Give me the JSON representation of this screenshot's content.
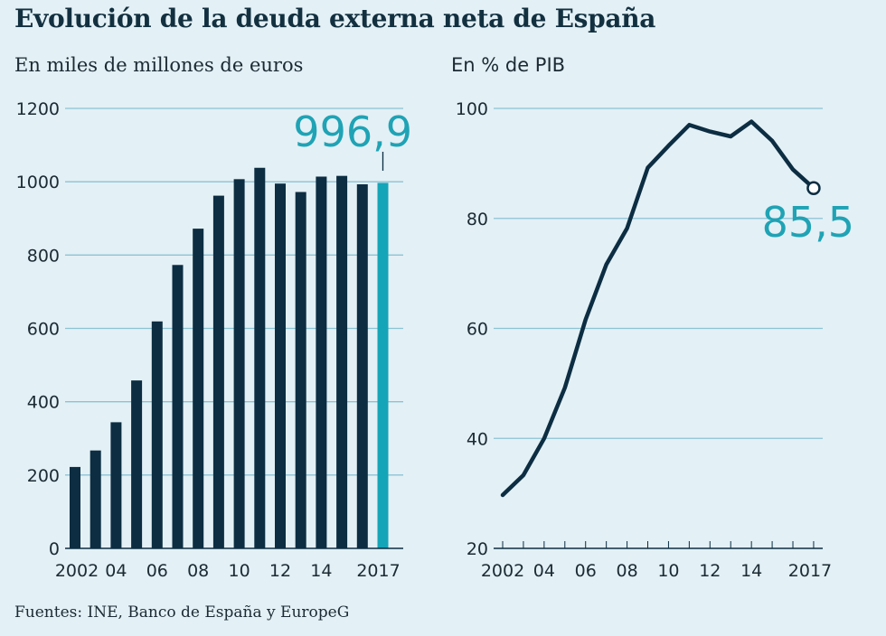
{
  "title": "Evolución de la deuda externa neta de España",
  "source": "Fuentes: INE, Banco de España y EuropeG",
  "colors": {
    "bar": "#0c2d42",
    "highlight": "#14a5b8",
    "line": "#0c2d42",
    "grid": "#8cc3d3",
    "callout": "#1fa3b5"
  },
  "chart_data": [
    {
      "type": "bar",
      "subtitle": "En miles de millones de euros",
      "categories": [
        "2002",
        "2003",
        "2004",
        "2005",
        "2006",
        "2007",
        "2008",
        "2009",
        "2010",
        "2011",
        "2012",
        "2013",
        "2014",
        "2015",
        "2016",
        "2017"
      ],
      "x_tick_labels": [
        "2002",
        "",
        "04",
        "",
        "06",
        "",
        "08",
        "",
        "10",
        "",
        "12",
        "",
        "14",
        "",
        "",
        "2017"
      ],
      "values": [
        222,
        267,
        344,
        458,
        619,
        773,
        872,
        962,
        1007,
        1038,
        995,
        972,
        1014,
        1016,
        993,
        996.9
      ],
      "highlight_index": 15,
      "y_ticks": [
        "0",
        "200",
        "400",
        "600",
        "800",
        "1000",
        "1200"
      ],
      "ylim": [
        0,
        1200
      ],
      "callout_label": "996,9"
    },
    {
      "type": "line",
      "subtitle": "En % de PIB",
      "x": [
        "2002",
        "2003",
        "2004",
        "2005",
        "2006",
        "2007",
        "2008",
        "2009",
        "2010",
        "2011",
        "2012",
        "2013",
        "2014",
        "2015",
        "2016",
        "2017"
      ],
      "x_tick_labels": [
        "2002",
        "",
        "04",
        "",
        "06",
        "",
        "08",
        "",
        "10",
        "",
        "12",
        "",
        "14",
        "",
        "",
        "2017"
      ],
      "values": [
        29.7,
        33.3,
        40.0,
        49.2,
        61.6,
        71.6,
        78.2,
        89.2,
        93.2,
        97.0,
        95.8,
        94.9,
        97.6,
        94.1,
        88.9,
        85.5
      ],
      "y_ticks": [
        "20",
        "40",
        "60",
        "80",
        "100"
      ],
      "ylim": [
        20,
        100
      ],
      "callout_label": "85,5"
    }
  ]
}
